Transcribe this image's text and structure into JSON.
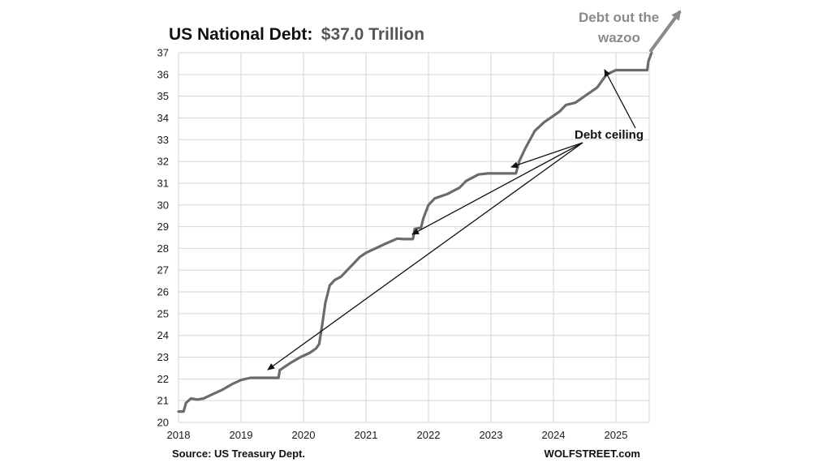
{
  "chart_data": {
    "type": "line",
    "title": "US National Debt:",
    "title_highlight": "$37.0 Trillion",
    "xlabel": "",
    "ylabel": "",
    "xlim": [
      2018,
      2025.6
    ],
    "ylim": [
      20,
      37
    ],
    "x_ticks": [
      "2018",
      "2019",
      "2020",
      "2021",
      "2022",
      "2023",
      "2024",
      "2025"
    ],
    "y_ticks": [
      "20",
      "21",
      "22",
      "23",
      "24",
      "25",
      "26",
      "27",
      "28",
      "29",
      "30",
      "31",
      "32",
      "33",
      "34",
      "35",
      "36",
      "37"
    ],
    "grid": true,
    "series": [
      {
        "color": "#6b6b6b",
        "points": [
          [
            2018.0,
            20.5
          ],
          [
            2018.08,
            20.5
          ],
          [
            2018.12,
            20.9
          ],
          [
            2018.2,
            21.1
          ],
          [
            2018.3,
            21.05
          ],
          [
            2018.4,
            21.1
          ],
          [
            2018.55,
            21.3
          ],
          [
            2018.7,
            21.5
          ],
          [
            2018.85,
            21.75
          ],
          [
            2019.0,
            21.95
          ],
          [
            2019.15,
            22.05
          ],
          [
            2019.6,
            22.05
          ],
          [
            2019.62,
            22.4
          ],
          [
            2019.8,
            22.75
          ],
          [
            2019.95,
            23.0
          ],
          [
            2020.1,
            23.2
          ],
          [
            2020.2,
            23.4
          ],
          [
            2020.25,
            23.6
          ],
          [
            2020.3,
            24.5
          ],
          [
            2020.35,
            25.5
          ],
          [
            2020.42,
            26.3
          ],
          [
            2020.5,
            26.55
          ],
          [
            2020.6,
            26.7
          ],
          [
            2020.7,
            27.0
          ],
          [
            2020.8,
            27.3
          ],
          [
            2020.9,
            27.6
          ],
          [
            2021.0,
            27.8
          ],
          [
            2021.15,
            28.0
          ],
          [
            2021.3,
            28.2
          ],
          [
            2021.5,
            28.45
          ],
          [
            2021.6,
            28.43
          ],
          [
            2021.75,
            28.43
          ],
          [
            2021.78,
            28.9
          ],
          [
            2021.88,
            28.95
          ],
          [
            2021.92,
            29.4
          ],
          [
            2022.0,
            30.0
          ],
          [
            2022.1,
            30.3
          ],
          [
            2022.3,
            30.5
          ],
          [
            2022.5,
            30.8
          ],
          [
            2022.6,
            31.1
          ],
          [
            2022.8,
            31.4
          ],
          [
            2022.95,
            31.45
          ],
          [
            2023.1,
            31.45
          ],
          [
            2023.4,
            31.45
          ],
          [
            2023.45,
            32.0
          ],
          [
            2023.55,
            32.6
          ],
          [
            2023.7,
            33.4
          ],
          [
            2023.85,
            33.8
          ],
          [
            2024.0,
            34.1
          ],
          [
            2024.1,
            34.3
          ],
          [
            2024.2,
            34.6
          ],
          [
            2024.35,
            34.7
          ],
          [
            2024.5,
            35.0
          ],
          [
            2024.7,
            35.4
          ],
          [
            2024.85,
            36.0
          ],
          [
            2025.0,
            36.2
          ],
          [
            2025.2,
            36.2
          ],
          [
            2025.5,
            36.2
          ],
          [
            2025.52,
            36.6
          ],
          [
            2025.57,
            37.0
          ]
        ]
      }
    ],
    "annotations": {
      "debt_ceiling": "Debt ceiling",
      "wazoo_line1": "Debt out the",
      "wazoo_line2": "wazoo"
    },
    "source": "Source: US Treasury Dept.",
    "brand": "WOLFSTREET.com"
  }
}
